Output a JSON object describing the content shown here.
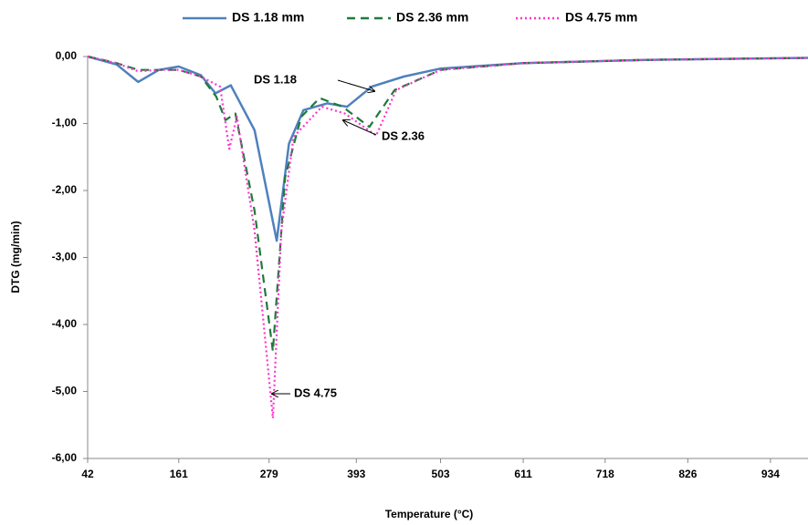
{
  "chart_data": {
    "type": "line",
    "x_label": "Temperature (°C)",
    "y_label": "DTG (mg/min)",
    "xlim": [
      42,
      983
    ],
    "xticks": [
      42,
      161,
      279,
      393,
      503,
      611,
      718,
      826,
      934
    ],
    "ylim": [
      -6,
      0
    ],
    "yticks": [
      {
        "value": 0,
        "label": "0,00"
      },
      {
        "value": -1,
        "label": "-1,00"
      },
      {
        "value": -2,
        "label": "-2,00"
      },
      {
        "value": -3,
        "label": "-3,00"
      },
      {
        "value": -4,
        "label": "-4,00"
      },
      {
        "value": -5,
        "label": "-5,00"
      },
      {
        "value": -6,
        "label": "-6,00"
      }
    ],
    "series": [
      {
        "name": "DS 1.18 mm",
        "color": "#4f81bd",
        "dash": "solid",
        "x": [
          42,
          80,
          108,
          135,
          161,
          190,
          209,
          229,
          260,
          289,
          305,
          324,
          355,
          381,
          413,
          455,
          503,
          611,
          770,
          983
        ],
        "values": [
          0,
          -0.12,
          -0.38,
          -0.2,
          -0.15,
          -0.28,
          -0.55,
          -0.43,
          -1.1,
          -2.75,
          -1.3,
          -0.8,
          -0.7,
          -0.75,
          -0.45,
          -0.3,
          -0.18,
          -0.1,
          -0.05,
          -0.02
        ]
      },
      {
        "name": "DS 2.36 mm",
        "color": "#1e7b3a",
        "dash": "dashed",
        "x": [
          42,
          80,
          108,
          135,
          161,
          190,
          210,
          222,
          235,
          260,
          284,
          300,
          321,
          345,
          375,
          410,
          443,
          503,
          611,
          770,
          983
        ],
        "values": [
          0,
          -0.1,
          -0.2,
          -0.2,
          -0.2,
          -0.3,
          -0.6,
          -0.95,
          -0.85,
          -2.3,
          -4.4,
          -1.8,
          -0.9,
          -0.62,
          -0.75,
          -1.05,
          -0.5,
          -0.2,
          -0.1,
          -0.05,
          -0.02
        ]
      },
      {
        "name": "DS 4.75 mm",
        "color": "#ff33cc",
        "dash": "dotted",
        "x": [
          42,
          80,
          108,
          135,
          161,
          190,
          215,
          227,
          237,
          260,
          284,
          295,
          311,
          348,
          378,
          419,
          445,
          503,
          611,
          770,
          983
        ],
        "values": [
          0,
          -0.1,
          -0.22,
          -0.2,
          -0.2,
          -0.3,
          -0.45,
          -1.38,
          -0.9,
          -2.6,
          -5.4,
          -2.6,
          -1.2,
          -0.75,
          -0.85,
          -1.18,
          -0.5,
          -0.2,
          -0.1,
          -0.05,
          -0.02
        ]
      }
    ],
    "annotations": [
      "DS 1.18",
      "DS 2.36",
      "DS 4.75"
    ]
  }
}
